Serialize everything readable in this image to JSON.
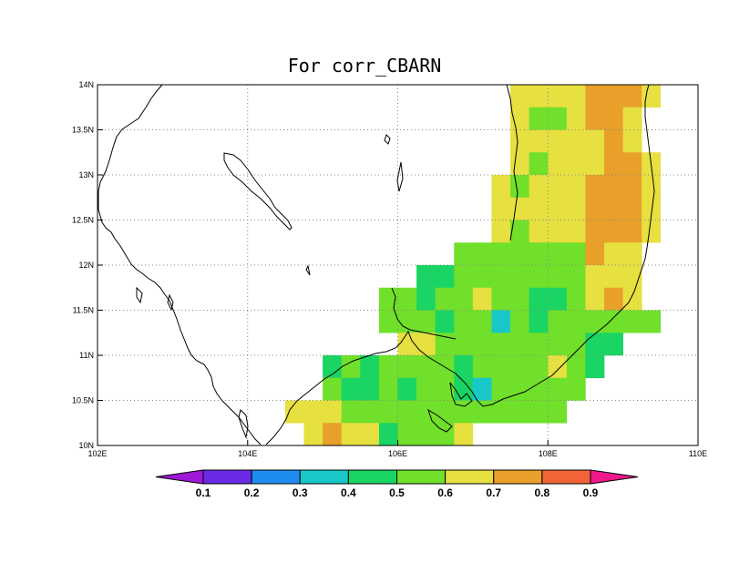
{
  "title": "For corr_CBARN",
  "map": {
    "lon_range": [
      102,
      110
    ],
    "lat_range": [
      10,
      14
    ],
    "cell_size_deg": 0.25,
    "x_ticks": [
      {
        "value": 102,
        "label": "102E"
      },
      {
        "value": 104,
        "label": "104E"
      },
      {
        "value": 106,
        "label": "106E"
      },
      {
        "value": 108,
        "label": "108E"
      },
      {
        "value": 110,
        "label": "110E"
      }
    ],
    "y_ticks": [
      {
        "value": 10,
        "label": "10N"
      },
      {
        "value": 10.5,
        "label": "10.5N"
      },
      {
        "value": 11,
        "label": "11N"
      },
      {
        "value": 11.5,
        "label": "11.5N"
      },
      {
        "value": 12,
        "label": "12N"
      },
      {
        "value": 12.5,
        "label": "12.5N"
      },
      {
        "value": 13,
        "label": "13N"
      },
      {
        "value": 13.5,
        "label": "13.5N"
      },
      {
        "value": 14,
        "label": "14N"
      }
    ],
    "gridlines": true
  },
  "colorbar": {
    "labels": [
      "0.1",
      "0.2",
      "0.3",
      "0.4",
      "0.5",
      "0.6",
      "0.7",
      "0.8",
      "0.9"
    ],
    "colors": [
      "#a018d8",
      "#6a2ae6",
      "#1e8cf0",
      "#18c8c8",
      "#1ad464",
      "#70e02a",
      "#e6e040",
      "#e8a02a",
      "#f06438",
      "#f0188c"
    ]
  },
  "legend": {
    "0.45": "#1ad464",
    "0.55": "#70e02a",
    "0.65": "#e6e040",
    "0.75": "#e8a02a",
    "0.35": "#18c8c8",
    "0.85": "#f06438"
  },
  "grid_rows": [
    {
      "lat": 13.875,
      "cells": [
        [
          107.625,
          "Y"
        ],
        [
          107.875,
          "Y"
        ],
        [
          108.125,
          "Y"
        ],
        [
          108.375,
          "Y"
        ],
        [
          108.625,
          "O"
        ],
        [
          108.875,
          "O"
        ],
        [
          109.125,
          "O"
        ],
        [
          109.375,
          "Y"
        ]
      ]
    },
    {
      "lat": 13.625,
      "cells": [
        [
          107.625,
          "Y"
        ],
        [
          107.875,
          "G"
        ],
        [
          108.125,
          "G"
        ],
        [
          108.375,
          "Y"
        ],
        [
          108.625,
          "O"
        ],
        [
          108.875,
          "O"
        ],
        [
          109.125,
          "Y"
        ]
      ]
    },
    {
      "lat": 13.375,
      "cells": [
        [
          107.625,
          "Y"
        ],
        [
          107.875,
          "Y"
        ],
        [
          108.125,
          "Y"
        ],
        [
          108.375,
          "Y"
        ],
        [
          108.625,
          "Y"
        ],
        [
          108.875,
          "O"
        ],
        [
          109.125,
          "Y"
        ]
      ]
    },
    {
      "lat": 13.125,
      "cells": [
        [
          107.625,
          "Y"
        ],
        [
          107.875,
          "G"
        ],
        [
          108.125,
          "Y"
        ],
        [
          108.375,
          "Y"
        ],
        [
          108.625,
          "Y"
        ],
        [
          108.875,
          "O"
        ],
        [
          109.125,
          "O"
        ],
        [
          109.375,
          "Y"
        ]
      ]
    },
    {
      "lat": 12.875,
      "cells": [
        [
          107.375,
          "Y"
        ],
        [
          107.625,
          "G"
        ],
        [
          107.875,
          "Y"
        ],
        [
          108.125,
          "Y"
        ],
        [
          108.375,
          "Y"
        ],
        [
          108.625,
          "O"
        ],
        [
          108.875,
          "O"
        ],
        [
          109.125,
          "O"
        ],
        [
          109.375,
          "Y"
        ]
      ]
    },
    {
      "lat": 12.625,
      "cells": [
        [
          107.375,
          "Y"
        ],
        [
          107.625,
          "Y"
        ],
        [
          107.875,
          "Y"
        ],
        [
          108.125,
          "Y"
        ],
        [
          108.375,
          "Y"
        ],
        [
          108.625,
          "O"
        ],
        [
          108.875,
          "O"
        ],
        [
          109.125,
          "O"
        ],
        [
          109.375,
          "Y"
        ]
      ]
    },
    {
      "lat": 12.375,
      "cells": [
        [
          107.375,
          "Y"
        ],
        [
          107.625,
          "G"
        ],
        [
          107.875,
          "Y"
        ],
        [
          108.125,
          "Y"
        ],
        [
          108.375,
          "Y"
        ],
        [
          108.625,
          "O"
        ],
        [
          108.875,
          "O"
        ],
        [
          109.125,
          "O"
        ],
        [
          109.375,
          "Y"
        ]
      ]
    },
    {
      "lat": 12.125,
      "cells": [
        [
          106.875,
          "G"
        ],
        [
          107.125,
          "G"
        ],
        [
          107.375,
          "G"
        ],
        [
          107.625,
          "G"
        ],
        [
          107.875,
          "G"
        ],
        [
          108.125,
          "G"
        ],
        [
          108.375,
          "G"
        ],
        [
          108.625,
          "O"
        ],
        [
          108.875,
          "Y"
        ],
        [
          109.125,
          "Y"
        ]
      ]
    },
    {
      "lat": 11.875,
      "cells": [
        [
          106.375,
          "D"
        ],
        [
          106.625,
          "D"
        ],
        [
          106.875,
          "G"
        ],
        [
          107.125,
          "G"
        ],
        [
          107.375,
          "G"
        ],
        [
          107.625,
          "G"
        ],
        [
          107.875,
          "G"
        ],
        [
          108.125,
          "G"
        ],
        [
          108.375,
          "G"
        ],
        [
          108.625,
          "Y"
        ],
        [
          108.875,
          "Y"
        ],
        [
          109.125,
          "Y"
        ]
      ]
    },
    {
      "lat": 11.625,
      "cells": [
        [
          105.875,
          "G"
        ],
        [
          106.125,
          "G"
        ],
        [
          106.375,
          "D"
        ],
        [
          106.625,
          "G"
        ],
        [
          106.875,
          "G"
        ],
        [
          107.125,
          "Y"
        ],
        [
          107.375,
          "G"
        ],
        [
          107.625,
          "G"
        ],
        [
          107.875,
          "D"
        ],
        [
          108.125,
          "D"
        ],
        [
          108.375,
          "G"
        ],
        [
          108.625,
          "Y"
        ],
        [
          108.875,
          "O"
        ],
        [
          109.125,
          "Y"
        ]
      ]
    },
    {
      "lat": 11.375,
      "cells": [
        [
          105.875,
          "G"
        ],
        [
          106.125,
          "G"
        ],
        [
          106.375,
          "G"
        ],
        [
          106.625,
          "D"
        ],
        [
          106.875,
          "G"
        ],
        [
          107.125,
          "G"
        ],
        [
          107.375,
          "C"
        ],
        [
          107.625,
          "G"
        ],
        [
          107.875,
          "D"
        ],
        [
          108.125,
          "G"
        ],
        [
          108.375,
          "G"
        ],
        [
          108.625,
          "G"
        ],
        [
          108.875,
          "G"
        ],
        [
          109.125,
          "G"
        ],
        [
          109.375,
          "G"
        ]
      ]
    },
    {
      "lat": 11.125,
      "cells": [
        [
          106.125,
          "Y"
        ],
        [
          106.375,
          "Y"
        ],
        [
          106.625,
          "G"
        ],
        [
          106.875,
          "G"
        ],
        [
          107.125,
          "G"
        ],
        [
          107.375,
          "G"
        ],
        [
          107.625,
          "G"
        ],
        [
          107.875,
          "G"
        ],
        [
          108.125,
          "G"
        ],
        [
          108.375,
          "G"
        ],
        [
          108.625,
          "D"
        ],
        [
          108.875,
          "D"
        ]
      ]
    },
    {
      "lat": 10.875,
      "cells": [
        [
          105.125,
          "D"
        ],
        [
          105.375,
          "G"
        ],
        [
          105.625,
          "D"
        ],
        [
          105.875,
          "G"
        ],
        [
          106.125,
          "G"
        ],
        [
          106.375,
          "G"
        ],
        [
          106.625,
          "G"
        ],
        [
          106.875,
          "D"
        ],
        [
          107.125,
          "G"
        ],
        [
          107.375,
          "G"
        ],
        [
          107.625,
          "G"
        ],
        [
          107.875,
          "G"
        ],
        [
          108.125,
          "Y"
        ],
        [
          108.375,
          "G"
        ],
        [
          108.625,
          "D"
        ]
      ]
    },
    {
      "lat": 10.625,
      "cells": [
        [
          105.125,
          "G"
        ],
        [
          105.375,
          "D"
        ],
        [
          105.625,
          "D"
        ],
        [
          105.875,
          "G"
        ],
        [
          106.125,
          "D"
        ],
        [
          106.375,
          "G"
        ],
        [
          106.625,
          "G"
        ],
        [
          106.875,
          "D"
        ],
        [
          107.125,
          "C"
        ],
        [
          107.375,
          "G"
        ],
        [
          107.625,
          "G"
        ],
        [
          107.875,
          "G"
        ],
        [
          108.125,
          "G"
        ],
        [
          108.375,
          "G"
        ]
      ]
    },
    {
      "lat": 10.375,
      "cells": [
        [
          104.625,
          "Y"
        ],
        [
          104.875,
          "Y"
        ],
        [
          105.125,
          "Y"
        ],
        [
          105.375,
          "G"
        ],
        [
          105.625,
          "G"
        ],
        [
          105.875,
          "G"
        ],
        [
          106.125,
          "G"
        ],
        [
          106.375,
          "G"
        ],
        [
          106.625,
          "G"
        ],
        [
          106.875,
          "G"
        ],
        [
          107.125,
          "G"
        ],
        [
          107.375,
          "G"
        ],
        [
          107.625,
          "G"
        ],
        [
          107.875,
          "G"
        ],
        [
          108.125,
          "G"
        ]
      ]
    },
    {
      "lat": 10.125,
      "cells": [
        [
          104.875,
          "Y"
        ],
        [
          105.125,
          "O"
        ],
        [
          105.375,
          "Y"
        ],
        [
          105.625,
          "Y"
        ],
        [
          105.875,
          "D"
        ],
        [
          106.125,
          "G"
        ],
        [
          106.375,
          "G"
        ],
        [
          106.625,
          "G"
        ],
        [
          106.875,
          "Y"
        ]
      ]
    },
    {
      "lat": 9.875,
      "cells": []
    }
  ],
  "color_codes": {
    "Y": "#e6e040",
    "O": "#e8a02a",
    "G": "#70e02a",
    "D": "#1ad464",
    "C": "#18c8c8"
  }
}
